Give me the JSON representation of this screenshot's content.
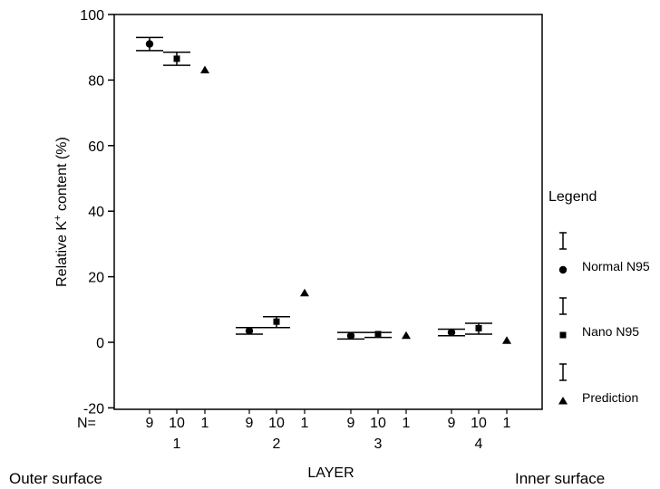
{
  "chart_data": {
    "type": "scatter",
    "ylabel_main": "Relative K",
    "ylabel_sup": "+",
    "ylabel_tail": " content (%)",
    "xlabel": "LAYER",
    "ylim": [
      -23,
      100
    ],
    "yticks": [
      100,
      80,
      60,
      40,
      20,
      0,
      -20
    ],
    "grid": false,
    "n_row_label": "N=",
    "n_values": [
      "9",
      "10",
      "1"
    ],
    "layers": [
      "1",
      "2",
      "3",
      "4"
    ],
    "outer_label": "Outer surface",
    "inner_label": "Inner surface",
    "legend_placement": "right",
    "legend_title": "Legend",
    "series": [
      {
        "name": "Normal N95",
        "marker": "circle",
        "values": [
          91,
          3.5,
          2,
          3
        ],
        "error_low": [
          89,
          2.5,
          1,
          2
        ],
        "error_high": [
          93,
          4.5,
          3,
          4
        ]
      },
      {
        "name": "Nano N95",
        "marker": "square",
        "values": [
          86.5,
          6.3,
          2.5,
          4.3
        ],
        "error_low": [
          84.5,
          4.5,
          1.5,
          2.5
        ],
        "error_high": [
          88.5,
          7.8,
          3,
          5.8
        ]
      },
      {
        "name": "Prediction",
        "marker": "triangle",
        "values": [
          83,
          15,
          2,
          0.5
        ]
      }
    ]
  }
}
